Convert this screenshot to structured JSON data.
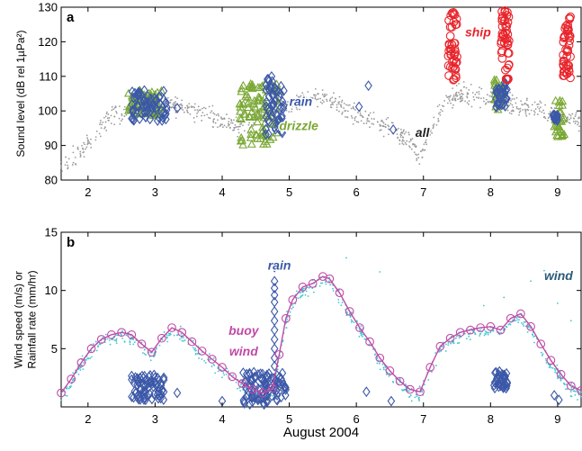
{
  "figure": {
    "xlabel": "August 2004"
  },
  "chart_data": [
    {
      "type": "scatter",
      "panel_label": "a",
      "ylabel": "Sound level (dB rel 1µPa²)",
      "xlabel": "",
      "xlim": [
        1.6,
        9.35
      ],
      "ylim": [
        80,
        130
      ],
      "x_ticks": [
        2,
        3,
        4,
        5,
        6,
        7,
        8,
        9
      ],
      "y_ticks": [
        80,
        90,
        100,
        110,
        120,
        130
      ],
      "grid": false,
      "annotations": [
        {
          "text": "ship",
          "x": 7.62,
          "y": 121.5,
          "color": "#e8242b"
        },
        {
          "text": "rain",
          "x": 5.0,
          "y": 101.5,
          "color": "#3b58a8"
        },
        {
          "text": "drizzle",
          "x": 4.85,
          "y": 94.5,
          "color": "#7aa834"
        },
        {
          "text": "all",
          "x": 6.88,
          "y": 92.5,
          "color": "#222222"
        }
      ],
      "series": [
        {
          "name": "all",
          "marker": "dot",
          "color": "#9a9a9a",
          "curve": {
            "x": [
              1.6,
              1.8,
              2.0,
              2.2,
              2.4,
              2.6,
              2.8,
              3.0,
              3.2,
              3.4,
              3.6,
              3.8,
              4.0,
              4.2,
              4.4,
              4.6,
              4.8,
              5.0,
              5.2,
              5.4,
              5.6,
              5.8,
              6.0,
              6.2,
              6.4,
              6.6,
              6.8,
              6.95,
              7.1,
              7.3,
              7.5,
              7.7,
              7.9,
              8.1,
              8.3,
              8.5,
              8.7,
              8.9,
              9.1,
              9.35
            ],
            "y": [
              84,
              87,
              91,
              96,
              99,
              100,
              101,
              101.5,
              102,
              101,
              100,
              99,
              97,
              96,
              97,
              99,
              101,
              102,
              103.5,
              104,
              103,
              101,
              99,
              98,
              96,
              94,
              91,
              86,
              94,
              102,
              105,
              105,
              104,
              103,
              102,
              101,
              100,
              99,
              98,
              97
            ]
          },
          "spread_db": 2.5
        },
        {
          "name": "drizzle",
          "marker": "triangle",
          "color": "#7aa834",
          "clusters": [
            {
              "x_range": [
                2.6,
                3.1
              ],
              "y_range": [
                98.5,
                106
              ]
            },
            {
              "x_range": [
                4.25,
                4.85
              ],
              "y_range": [
                90,
                108
              ]
            },
            {
              "x_range": [
                8.05,
                8.2
              ],
              "y_range": [
                100,
                109
              ]
            },
            {
              "x_range": [
                8.95,
                9.1
              ],
              "y_range": [
                92,
                103
              ]
            }
          ]
        },
        {
          "name": "rain",
          "marker": "diamond",
          "color": "#3b58a8",
          "clusters": [
            {
              "x_range": [
                2.65,
                3.2
              ],
              "y_range": [
                97,
                106
              ]
            },
            {
              "x_range": [
                4.65,
                4.92
              ],
              "y_range": [
                93,
                110
              ]
            },
            {
              "x_range": [
                8.05,
                8.25
              ],
              "y_range": [
                101,
                109
              ]
            },
            {
              "x_range": [
                8.92,
                9.0
              ],
              "y_range": [
                97,
                99
              ]
            }
          ],
          "points": [
            [
              3.33,
              100.8
            ],
            [
              6.04,
              101.2
            ],
            [
              6.18,
              107.3
            ],
            [
              6.55,
              94.6
            ]
          ]
        },
        {
          "name": "ship",
          "marker": "circle",
          "color": "#e8242b",
          "clusters": [
            {
              "x_range": [
                7.37,
                7.5
              ],
              "y_range": [
                108.5,
                128.5
              ]
            },
            {
              "x_range": [
                8.15,
                8.28
              ],
              "y_range": [
                109,
                129
              ]
            },
            {
              "x_range": [
                9.08,
                9.2
              ],
              "y_range": [
                109.5,
                129
              ]
            }
          ]
        }
      ]
    },
    {
      "type": "line",
      "panel_label": "b",
      "ylabel": "Wind speed (m/s) or Rainfall rate (mm/hr)",
      "xlabel": "August 2004",
      "xlim": [
        1.6,
        9.35
      ],
      "ylim": [
        0,
        15
      ],
      "x_ticks": [
        2,
        3,
        4,
        5,
        6,
        7,
        8,
        9
      ],
      "y_ticks": [
        5,
        10,
        15
      ],
      "grid": false,
      "annotations": [
        {
          "text": "rain",
          "x": 4.68,
          "y": 11.8,
          "color": "#3b58a8"
        },
        {
          "text": "buoy",
          "x": 4.32,
          "y": 6.2,
          "color": "#c14aa6"
        },
        {
          "text": "wind",
          "x": 4.32,
          "y": 4.4,
          "color": "#c14aa6"
        },
        {
          "text": "wind",
          "x": 8.8,
          "y": 10.9,
          "color": "#2b5b7a"
        }
      ],
      "series": [
        {
          "name": "buoy wind",
          "marker": "circle-line",
          "color": "#c14aa6",
          "x": [
            1.6,
            1.75,
            1.9,
            2.05,
            2.2,
            2.35,
            2.5,
            2.65,
            2.8,
            2.95,
            3.1,
            3.25,
            3.4,
            3.55,
            3.7,
            3.85,
            4.0,
            4.15,
            4.3,
            4.45,
            4.6,
            4.75,
            4.85,
            4.95,
            5.05,
            5.2,
            5.35,
            5.5,
            5.6,
            5.75,
            5.9,
            6.05,
            6.2,
            6.35,
            6.5,
            6.65,
            6.8,
            6.95,
            7.1,
            7.25,
            7.4,
            7.55,
            7.7,
            7.85,
            8.0,
            8.15,
            8.3,
            8.45,
            8.6,
            8.75,
            8.9,
            9.05,
            9.2,
            9.35
          ],
          "y": [
            1.2,
            2.4,
            3.8,
            5.0,
            5.8,
            6.2,
            6.4,
            6.2,
            5.4,
            4.7,
            5.9,
            6.8,
            6.4,
            5.6,
            4.8,
            4.1,
            3.4,
            2.6,
            2.0,
            1.5,
            1.2,
            1.6,
            4.5,
            7.6,
            9.2,
            10.3,
            10.6,
            11.2,
            11.0,
            9.8,
            8.2,
            6.8,
            5.6,
            4.2,
            3.1,
            2.2,
            1.5,
            1.3,
            3.4,
            5.2,
            5.9,
            6.4,
            6.6,
            6.8,
            6.9,
            6.6,
            7.6,
            8.0,
            6.9,
            5.4,
            4.0,
            2.8,
            1.8,
            1.4
          ]
        },
        {
          "name": "wind",
          "marker": "dot",
          "color": "#3ec6d1",
          "spread": 0.6,
          "outliers": [
            [
              5.85,
              12.8
            ],
            [
              6.35,
              11.6
            ],
            [
              7.9,
              8.7
            ],
            [
              8.2,
              9.4
            ],
            [
              8.6,
              10.8
            ],
            [
              8.8,
              11.7
            ],
            [
              9.0,
              8.9
            ],
            [
              9.2,
              7.4
            ]
          ]
        },
        {
          "name": "rain",
          "marker": "diamond",
          "color": "#3b58a8",
          "clusters": [
            {
              "x_range": [
                2.65,
                3.15
              ],
              "y_range": [
                0.6,
                2.8
              ]
            },
            {
              "x_range": [
                4.3,
                4.95
              ],
              "y_range": [
                0.2,
                3.0
              ]
            },
            {
              "x_range": [
                8.05,
                8.25
              ],
              "y_range": [
                1.6,
                3.1
              ]
            }
          ],
          "spike": {
            "x": 4.78,
            "y_values": [
              3.5,
              4.2,
              5.0,
              5.8,
              6.6,
              7.4,
              8.2,
              9.0,
              9.6,
              10.2,
              10.8,
              12.0
            ]
          },
          "points": [
            [
              3.33,
              1.2
            ],
            [
              4.0,
              0.5
            ],
            [
              6.15,
              1.3
            ],
            [
              6.52,
              0.5
            ],
            [
              8.95,
              1.0
            ],
            [
              9.02,
              0.6
            ]
          ]
        }
      ]
    }
  ]
}
